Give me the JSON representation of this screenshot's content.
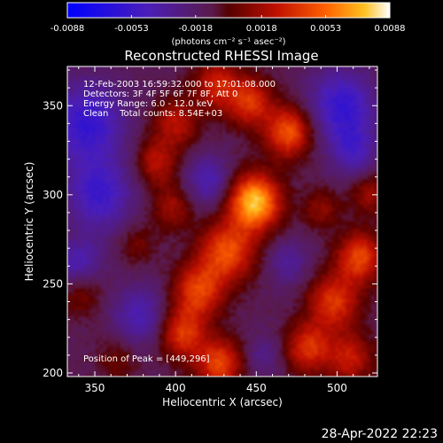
{
  "chart_data": {
    "type": "heatmap",
    "title": "Reconstructed RHESSI Image",
    "xlabel": "Heliocentric X (arcsec)",
    "ylabel": "Heliocentric Y (arcsec)",
    "xlim": [
      333,
      525
    ],
    "ylim": [
      198,
      372
    ],
    "xticks": [
      "350",
      "400",
      "450",
      "500"
    ],
    "yticks": [
      "200",
      "250",
      "300",
      "350"
    ],
    "colorbar": {
      "ticks": [
        "-0.0088",
        "-0.0053",
        "-0.0018",
        "0.0018",
        "0.0053",
        "0.0088"
      ],
      "range": [
        -0.0088,
        0.0088
      ],
      "unit_label": "(photons cm⁻² s⁻¹ asec⁻²)"
    },
    "info_lines": [
      "12-Feb-2003 16:59:32.000 to 17:01:08.000",
      "Detectors: 3F 4F 5F 6F 7F 8F, Att 0",
      "Energy Range: 6.0 - 12.0 keV",
      "Clean    Total counts: 8.54E+03"
    ],
    "peak_label": "Position of Peak = [449,296]",
    "peak": [
      449,
      296
    ],
    "sources": [
      {
        "x": 449,
        "y": 296,
        "peak": 0.0088,
        "sigma": 11
      },
      {
        "x": 470,
        "y": 335,
        "peak": 0.006,
        "sigma": 10
      },
      {
        "x": 432,
        "y": 268,
        "peak": 0.0058,
        "sigma": 12
      },
      {
        "x": 414,
        "y": 246,
        "peak": 0.0052,
        "sigma": 11
      },
      {
        "x": 446,
        "y": 352,
        "peak": 0.0048,
        "sigma": 10
      },
      {
        "x": 425,
        "y": 362,
        "peak": 0.0042,
        "sigma": 10
      },
      {
        "x": 400,
        "y": 340,
        "peak": 0.0036,
        "sigma": 10
      },
      {
        "x": 388,
        "y": 318,
        "peak": 0.0036,
        "sigma": 9
      },
      {
        "x": 398,
        "y": 293,
        "peak": 0.003,
        "sigma": 9
      },
      {
        "x": 404,
        "y": 222,
        "peak": 0.005,
        "sigma": 10
      },
      {
        "x": 427,
        "y": 205,
        "peak": 0.0055,
        "sigma": 10
      },
      {
        "x": 482,
        "y": 214,
        "peak": 0.0048,
        "sigma": 10
      },
      {
        "x": 498,
        "y": 240,
        "peak": 0.005,
        "sigma": 11
      },
      {
        "x": 514,
        "y": 265,
        "peak": 0.0055,
        "sigma": 10
      },
      {
        "x": 508,
        "y": 208,
        "peak": 0.004,
        "sigma": 10
      },
      {
        "x": 520,
        "y": 300,
        "peak": 0.0028,
        "sigma": 8
      },
      {
        "x": 490,
        "y": 292,
        "peak": 0.0025,
        "sigma": 8
      },
      {
        "x": 342,
        "y": 244,
        "peak": 0.0022,
        "sigma": 9
      },
      {
        "x": 376,
        "y": 272,
        "peak": 0.0018,
        "sigma": 8
      },
      {
        "x": 364,
        "y": 208,
        "peak": 0.0018,
        "sigma": 9
      }
    ],
    "troughs": [
      {
        "x": 345,
        "y": 340,
        "depth": -0.0045,
        "sigma": 16
      },
      {
        "x": 353,
        "y": 300,
        "depth": -0.004,
        "sigma": 14
      },
      {
        "x": 503,
        "y": 350,
        "depth": -0.0045,
        "sigma": 14
      },
      {
        "x": 420,
        "y": 308,
        "depth": -0.003,
        "sigma": 10
      },
      {
        "x": 378,
        "y": 232,
        "depth": -0.003,
        "sigma": 12
      },
      {
        "x": 470,
        "y": 262,
        "depth": -0.0022,
        "sigma": 9
      },
      {
        "x": 510,
        "y": 325,
        "depth": -0.003,
        "sigma": 10
      },
      {
        "x": 340,
        "y": 262,
        "depth": -0.003,
        "sigma": 10
      },
      {
        "x": 455,
        "y": 210,
        "depth": -0.0018,
        "sigma": 8
      }
    ]
  },
  "footer": {
    "timestamp": "28-Apr-2022 22:23"
  }
}
